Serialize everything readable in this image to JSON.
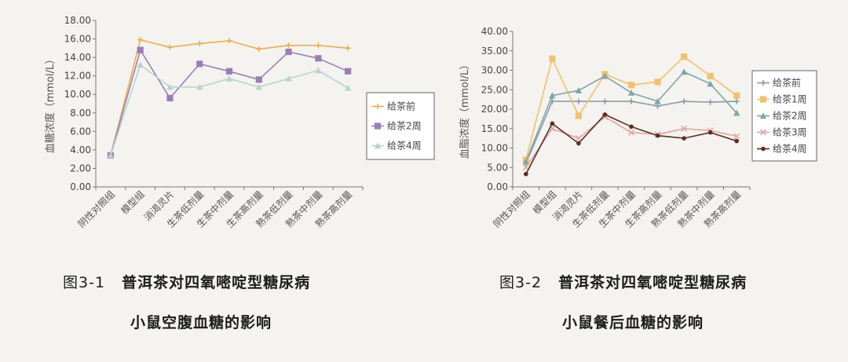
{
  "chart_data": [
    {
      "type": "line",
      "categories": [
        "阴性对照组",
        "模型组",
        "消渴灵片",
        "生茶低剂量",
        "生茶中剂量",
        "生茶高剂量",
        "熟茶低剂量",
        "熟茶中剂量",
        "熟茶高剂量"
      ],
      "ylabel": "血糖浓度（mmol/L）",
      "ylim": [
        0,
        18
      ],
      "yticks": [
        "0.00",
        "2.00",
        "4.00",
        "6.00",
        "8.00",
        "10.00",
        "12.00",
        "14.00",
        "16.00",
        "18.00"
      ],
      "legend_position": "right",
      "series": [
        {
          "name": "给茶前",
          "color": "#e8b04a",
          "marker": "plus",
          "values": [
            3.4,
            15.9,
            15.1,
            15.5,
            15.8,
            14.9,
            15.3,
            15.3,
            15.0
          ]
        },
        {
          "name": "给茶2周",
          "color": "#9a7fb6",
          "marker": "square",
          "values": [
            3.4,
            14.8,
            9.6,
            13.3,
            12.5,
            11.6,
            14.6,
            13.9,
            12.5
          ]
        },
        {
          "name": "给茶4周",
          "color": "#b9d4cf",
          "marker": "triangle",
          "values": [
            3.4,
            13.2,
            10.8,
            10.8,
            11.7,
            10.8,
            11.7,
            12.6,
            10.7
          ]
        }
      ]
    },
    {
      "type": "line",
      "categories": [
        "阴性对照组",
        "模型组",
        "消渴灵片",
        "生茶低剂量",
        "生茶中剂量",
        "生茶高剂量",
        "熟茶低剂量",
        "熟茶中剂量",
        "熟茶高剂量"
      ],
      "ylabel": "血脂浓度（mmol/L）",
      "ylim": [
        0,
        40
      ],
      "yticks": [
        "0.00",
        "5.00",
        "10.00",
        "15.00",
        "20.00",
        "25.00",
        "30.00",
        "35.00",
        "40.00"
      ],
      "legend_position": "right",
      "series": [
        {
          "name": "给茶前",
          "color": "#8c9aa8",
          "marker": "plus",
          "values": [
            6.0,
            22.0,
            22.0,
            22.0,
            22.0,
            20.8,
            22.0,
            21.8,
            22.0
          ]
        },
        {
          "name": "给茶1周",
          "color": "#f2c16b",
          "marker": "square",
          "values": [
            7.0,
            33.0,
            18.3,
            29.0,
            26.2,
            27.0,
            33.5,
            28.5,
            23.5
          ]
        },
        {
          "name": "给茶2周",
          "color": "#7fa6a6",
          "marker": "triangle",
          "values": [
            6.5,
            23.5,
            24.8,
            28.5,
            24.2,
            22.0,
            29.6,
            26.5,
            19.0
          ]
        },
        {
          "name": "给茶3周",
          "color": "#e3a3a8",
          "marker": "x",
          "values": [
            5.0,
            15.0,
            12.5,
            18.0,
            14.0,
            13.5,
            15.0,
            14.5,
            13.0
          ]
        },
        {
          "name": "给茶4周",
          "color": "#5a2f1f",
          "marker": "dot",
          "values": [
            3.3,
            16.3,
            11.2,
            18.6,
            15.5,
            13.2,
            12.5,
            14.0,
            11.8
          ]
        }
      ]
    }
  ],
  "captions": [
    {
      "line1_num": "图3-1",
      "line1_title": "普洱茶对四氧嘧啶型糖尿病",
      "line2": "小鼠空腹血糖的影响"
    },
    {
      "line1_num": "图3-2",
      "line1_title": "普洱茶对四氧嘧啶型糖尿病",
      "line2": "小鼠餐后血糖的影响"
    }
  ]
}
